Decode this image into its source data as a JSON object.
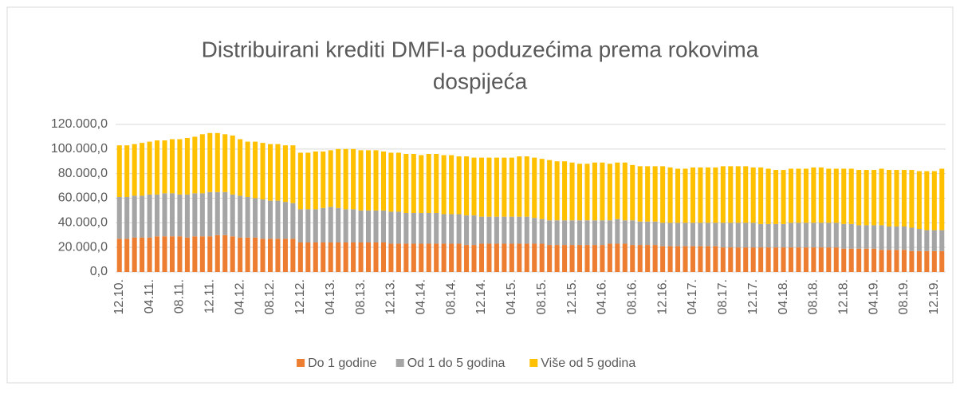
{
  "chart_data": {
    "type": "stacked_bar",
    "title": "Distribuirani krediti DMFI-a poduzećima prema rokovima",
    "title_line2": "dospijeća",
    "categories": [
      "12.10.",
      null,
      null,
      null,
      "04.11.",
      null,
      null,
      null,
      "08.11.",
      null,
      null,
      null,
      "12.11.",
      null,
      null,
      null,
      "04.12.",
      null,
      null,
      null,
      "08.12.",
      null,
      null,
      null,
      "12.12.",
      null,
      null,
      null,
      "04.13.",
      null,
      null,
      null,
      "08.13.",
      null,
      null,
      null,
      "12.13.",
      null,
      null,
      null,
      "04.14.",
      null,
      null,
      null,
      "08.14.",
      null,
      null,
      null,
      "12.14.",
      null,
      null,
      null,
      "04.15.",
      null,
      null,
      null,
      "08.15.",
      null,
      null,
      null,
      "12.15.",
      null,
      null,
      null,
      "04.16.",
      null,
      null,
      null,
      "08.16.",
      null,
      null,
      null,
      "12.16.",
      null,
      null,
      null,
      "04.17.",
      null,
      null,
      null,
      "08.17.",
      null,
      null,
      null,
      "12.17.",
      null,
      null,
      null,
      "04.18.",
      null,
      null,
      null,
      "08.18.",
      null,
      null,
      null,
      "12.18.",
      null,
      null,
      null,
      "04.19.",
      null,
      null,
      null,
      "08.19.",
      null,
      null,
      null,
      "12.19.",
      null
    ],
    "series": [
      {
        "name": "Do 1 godine",
        "color": "#ed7d31",
        "values": [
          27000,
          27000,
          28000,
          28000,
          28000,
          29000,
          29000,
          29000,
          29000,
          28000,
          29000,
          29000,
          29000,
          30000,
          30000,
          29000,
          28000,
          28000,
          28000,
          27000,
          27000,
          27000,
          27000,
          27000,
          24000,
          24000,
          24000,
          24000,
          24000,
          24000,
          24000,
          24000,
          24000,
          24000,
          24000,
          24000,
          23000,
          23000,
          23000,
          23000,
          23000,
          23000,
          23000,
          23000,
          23000,
          23000,
          22000,
          22000,
          23000,
          23000,
          23000,
          23000,
          23000,
          23000,
          23000,
          23000,
          23000,
          22000,
          22000,
          22000,
          22000,
          22000,
          22000,
          22000,
          22000,
          23000,
          23000,
          23000,
          22000,
          22000,
          22000,
          22000,
          21000,
          21000,
          21000,
          21000,
          21000,
          21000,
          21000,
          21000,
          20000,
          20000,
          20000,
          20000,
          20000,
          20000,
          20000,
          20000,
          20000,
          20000,
          20000,
          20000,
          20000,
          20000,
          20000,
          20000,
          19000,
          19000,
          19000,
          19000,
          19000,
          18000,
          18000,
          18000,
          18000,
          17000,
          17000,
          17000,
          17000,
          17000
        ]
      },
      {
        "name": "Od 1 do 5 godina",
        "color": "#a5a5a5",
        "values": [
          34000,
          34000,
          34000,
          34000,
          35000,
          34000,
          35000,
          35000,
          34000,
          35000,
          35000,
          35000,
          36000,
          35000,
          35000,
          34000,
          34000,
          33000,
          32000,
          32000,
          31000,
          31000,
          30000,
          29000,
          27000,
          27000,
          27000,
          28000,
          29000,
          28000,
          27000,
          27000,
          26000,
          26000,
          26000,
          26000,
          26000,
          26000,
          25000,
          25000,
          25000,
          25000,
          25000,
          24000,
          24000,
          24000,
          24000,
          24000,
          22000,
          22000,
          22000,
          22000,
          22000,
          22000,
          22000,
          21000,
          20000,
          20000,
          20000,
          20000,
          20000,
          20000,
          20000,
          20000,
          20000,
          19000,
          20000,
          19000,
          20000,
          19000,
          19000,
          19000,
          19000,
          19000,
          19000,
          19000,
          19000,
          19000,
          19000,
          19000,
          20000,
          20000,
          20000,
          20000,
          20000,
          19000,
          19000,
          19000,
          19000,
          20000,
          20000,
          20000,
          20000,
          20000,
          20000,
          20000,
          20000,
          20000,
          19000,
          19000,
          19000,
          20000,
          19000,
          19000,
          19000,
          19000,
          18000,
          17000,
          17000,
          17000
        ]
      },
      {
        "name": "Više od 5 godina",
        "color": "#ffc000",
        "values": [
          42000,
          42000,
          42000,
          43000,
          43000,
          44000,
          43000,
          44000,
          45000,
          46000,
          46000,
          48000,
          48000,
          48000,
          47000,
          48000,
          46000,
          45000,
          46000,
          46000,
          46000,
          46000,
          46000,
          47000,
          46000,
          46000,
          47000,
          46000,
          46000,
          48000,
          49000,
          49000,
          49000,
          49000,
          49000,
          48000,
          48000,
          48000,
          48000,
          48000,
          47000,
          48000,
          48000,
          48000,
          48000,
          47000,
          48000,
          47000,
          48000,
          48000,
          48000,
          48000,
          48000,
          49000,
          49000,
          49000,
          49000,
          49000,
          48000,
          48000,
          47000,
          46000,
          46000,
          47000,
          47000,
          46000,
          46000,
          47000,
          45000,
          45000,
          45000,
          45000,
          46000,
          45000,
          44000,
          44000,
          45000,
          45000,
          45000,
          45000,
          46000,
          46000,
          46000,
          46000,
          45000,
          46000,
          45000,
          44000,
          44000,
          44000,
          44000,
          44000,
          45000,
          45000,
          44000,
          44000,
          45000,
          45000,
          45000,
          45000,
          45000,
          46000,
          46000,
          46000,
          46000,
          47000,
          47000,
          48000,
          48000,
          50000
        ]
      }
    ],
    "ylim": [
      0,
      120000
    ],
    "yticks": [
      {
        "value": 0,
        "label": "0,0"
      },
      {
        "value": 20000,
        "label": "20.000,0"
      },
      {
        "value": 40000,
        "label": "40.000,0"
      },
      {
        "value": 60000,
        "label": "60.000,0"
      },
      {
        "value": 80000,
        "label": "80.000,0"
      },
      {
        "value": 100000,
        "label": "100.000,0"
      },
      {
        "value": 120000,
        "label": "120.000,0"
      }
    ],
    "grid": true,
    "legend": "bottom"
  }
}
